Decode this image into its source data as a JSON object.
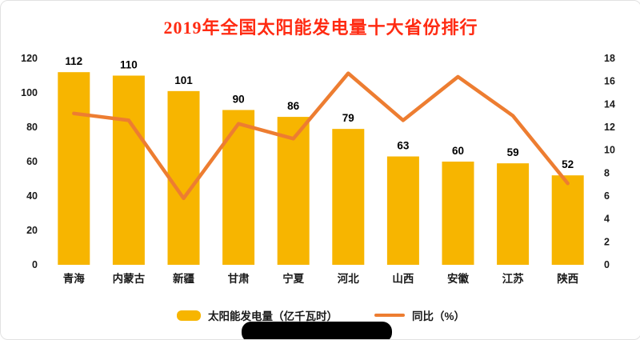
{
  "chart_data": {
    "type": "bar+line",
    "title": "2019年全国太阳能发电量十大省份排行",
    "title_color": "#FF2B12",
    "categories": [
      "青海",
      "内蒙古",
      "新疆",
      "甘肃",
      "宁夏",
      "河北",
      "山西",
      "安徽",
      "江苏",
      "陕西"
    ],
    "series": [
      {
        "name": "太阳能发电量（亿千瓦时）",
        "type": "bar",
        "axis": "left",
        "color": "#F7B500",
        "values": [
          112,
          110,
          101,
          90,
          86,
          79,
          63,
          60,
          59,
          52
        ]
      },
      {
        "name": "同比（%）",
        "type": "line",
        "axis": "right",
        "color": "#ED7D31",
        "values": [
          13.2,
          12.6,
          5.8,
          12.3,
          11.0,
          16.7,
          12.6,
          16.4,
          13.0,
          7.1
        ]
      }
    ],
    "left_axis": {
      "min": 0,
      "max": 120,
      "step": 20,
      "ticks": [
        0,
        20,
        40,
        60,
        80,
        100,
        120
      ]
    },
    "right_axis": {
      "min": 0,
      "max": 18,
      "step": 2,
      "ticks": [
        0,
        2,
        4,
        6,
        8,
        10,
        12,
        14,
        16,
        18
      ]
    },
    "grid": false,
    "data_labels": true,
    "legend_position": "bottom"
  }
}
